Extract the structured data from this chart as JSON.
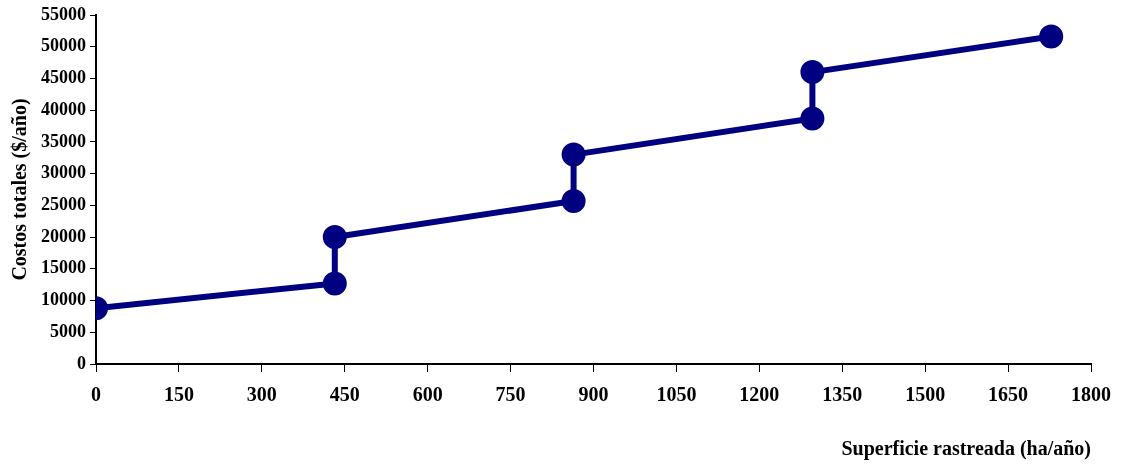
{
  "chart_data": {
    "type": "line",
    "xlabel": "Superficie rastreada (ha/año)",
    "ylabel": "Costos totales ($/año)",
    "x": [
      0,
      432,
      432,
      864,
      864,
      1296,
      1296,
      1728
    ],
    "series": [
      {
        "color": "#000080",
        "values": [
          8800,
          12700,
          20000,
          25700,
          33000,
          38700,
          46000,
          51600
        ]
      }
    ],
    "xlim": [
      0,
      1800
    ],
    "xticks": [
      0,
      150,
      300,
      450,
      600,
      750,
      900,
      1050,
      1200,
      1350,
      1500,
      1650,
      1800
    ],
    "ylim": [
      0,
      55000
    ],
    "yticks": [
      0,
      5000,
      10000,
      15000,
      20000,
      25000,
      30000,
      35000,
      40000,
      45000,
      50000,
      55000
    ],
    "grid": false,
    "legend": false,
    "marker": "circle",
    "line_style": "solid"
  }
}
